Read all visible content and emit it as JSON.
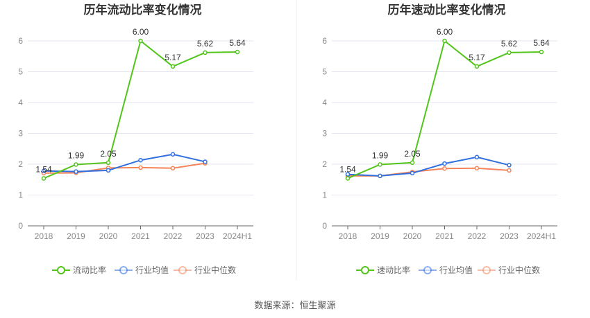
{
  "chart_data": [
    {
      "type": "line",
      "title": "历年流动比率变化情况",
      "categories": [
        "2018",
        "2019",
        "2020",
        "2021",
        "2022",
        "2023",
        "2024H1"
      ],
      "ylim": [
        0,
        6
      ],
      "yticks": [
        0,
        1,
        2,
        3,
        4,
        5,
        6
      ],
      "grid": true,
      "legend": "bottom",
      "series": [
        {
          "name": "流动比率",
          "color": "#52c41a",
          "values": [
            1.54,
            1.99,
            2.05,
            6.0,
            5.17,
            5.62,
            5.64
          ],
          "labels": [
            "1.54",
            "1.99",
            "2.05",
            "6.00",
            "5.17",
            "5.62",
            "5.64"
          ]
        },
        {
          "name": "行业均值",
          "color": "#2f6fe0",
          "values": [
            1.78,
            1.76,
            1.8,
            2.13,
            2.32,
            2.08,
            null
          ]
        },
        {
          "name": "行业中位数",
          "color": "#f5845a",
          "values": [
            1.71,
            1.72,
            1.88,
            1.89,
            1.87,
            2.03,
            null
          ]
        }
      ]
    },
    {
      "type": "line",
      "title": "历年速动比率变化情况",
      "categories": [
        "2018",
        "2019",
        "2020",
        "2021",
        "2022",
        "2023",
        "2024H1"
      ],
      "ylim": [
        0,
        6
      ],
      "yticks": [
        0,
        1,
        2,
        3,
        4,
        5,
        6
      ],
      "grid": true,
      "legend": "bottom",
      "series": [
        {
          "name": "速动比率",
          "color": "#52c41a",
          "values": [
            1.54,
            1.99,
            2.05,
            6.0,
            5.17,
            5.62,
            5.64
          ],
          "labels": [
            "1.54",
            "1.99",
            "2.05",
            "6.00",
            "5.17",
            "5.62",
            "5.64"
          ]
        },
        {
          "name": "行业均值",
          "color": "#2f6fe0",
          "values": [
            1.67,
            1.62,
            1.71,
            2.02,
            2.23,
            1.97,
            null
          ]
        },
        {
          "name": "行业中位数",
          "color": "#f5845a",
          "values": [
            1.62,
            1.62,
            1.75,
            1.86,
            1.87,
            1.8,
            null
          ]
        }
      ]
    }
  ],
  "source": "数据来源：恒生聚源"
}
